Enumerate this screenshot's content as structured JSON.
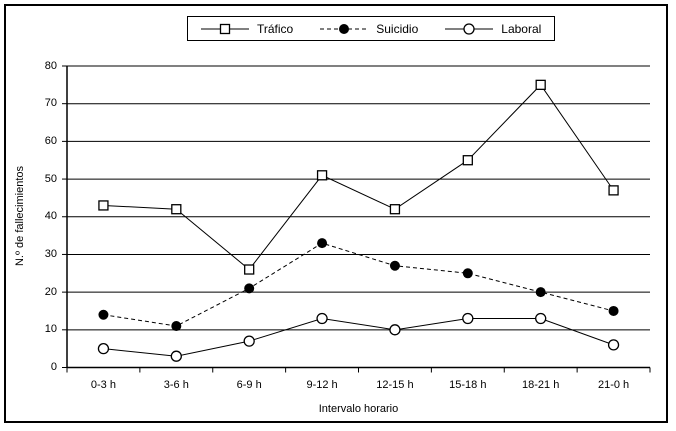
{
  "chart_data": {
    "type": "line",
    "title": "",
    "categories": [
      "0-3 h",
      "3-6 h",
      "6-9 h",
      "9-12 h",
      "12-15 h",
      "15-18 h",
      "18-21 h",
      "21-0 h"
    ],
    "series": [
      {
        "id": "trafico",
        "name": "Tráfico",
        "marker": "open-square",
        "line_style": "solid",
        "values": [
          43,
          42,
          26,
          51,
          42,
          55,
          75,
          47
        ]
      },
      {
        "id": "suicidio",
        "name": "Suicidio",
        "marker": "filled-circle",
        "line_style": "dashed",
        "values": [
          14,
          11,
          21,
          33,
          27,
          25,
          20,
          15
        ]
      },
      {
        "id": "laboral",
        "name": "Laboral",
        "marker": "open-circle",
        "line_style": "solid",
        "values": [
          5,
          3,
          7,
          13,
          10,
          13,
          13,
          6
        ]
      }
    ],
    "xlabel": "Intervalo horario",
    "ylabel": "N.º de fallecimientos",
    "ylim": [
      0,
      80
    ],
    "yticks": [
      0,
      10,
      20,
      30,
      40,
      50,
      60,
      70,
      80
    ],
    "grid": true,
    "legend_position": "top-center"
  },
  "colors": {
    "foreground": "#000000",
    "background": "#ffffff"
  }
}
